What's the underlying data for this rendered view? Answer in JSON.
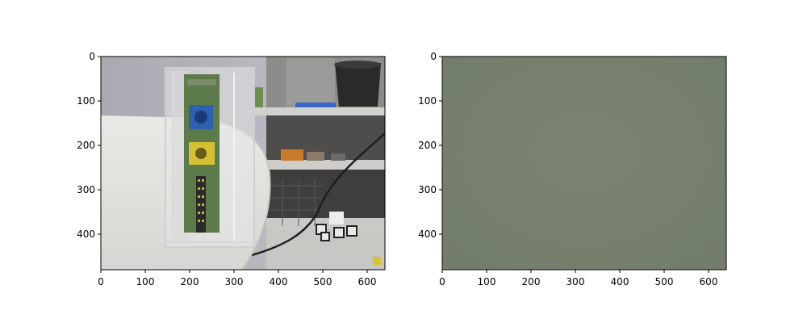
{
  "chart_data": [
    {
      "type": "image",
      "subject": "camera frame: clear acrylic case with circuit board on a white curved table, shelves with tools and cables behind",
      "xlim": [
        0,
        640
      ],
      "ylim": [
        480,
        0
      ],
      "xticks": [
        0,
        100,
        200,
        300,
        400,
        500,
        600
      ],
      "yticks": [
        0,
        100,
        200,
        300,
        400
      ],
      "xtick_labels": [
        "0",
        "100",
        "200",
        "300",
        "400",
        "500",
        "600"
      ],
      "ytick_labels": [
        "0",
        "100",
        "200",
        "300",
        "400"
      ],
      "title": "",
      "xlabel": "",
      "ylabel": ""
    },
    {
      "type": "image",
      "subject": "uniform grey-green frame",
      "fill_color": "#76806f",
      "xlim": [
        0,
        640
      ],
      "ylim": [
        480,
        0
      ],
      "xticks": [
        0,
        100,
        200,
        300,
        400,
        500,
        600
      ],
      "yticks": [
        0,
        100,
        200,
        300,
        400
      ],
      "xtick_labels": [
        "0",
        "100",
        "200",
        "300",
        "400",
        "500",
        "600"
      ],
      "ytick_labels": [
        "0",
        "100",
        "200",
        "300",
        "400"
      ],
      "title": "",
      "xlabel": "",
      "ylabel": ""
    }
  ]
}
